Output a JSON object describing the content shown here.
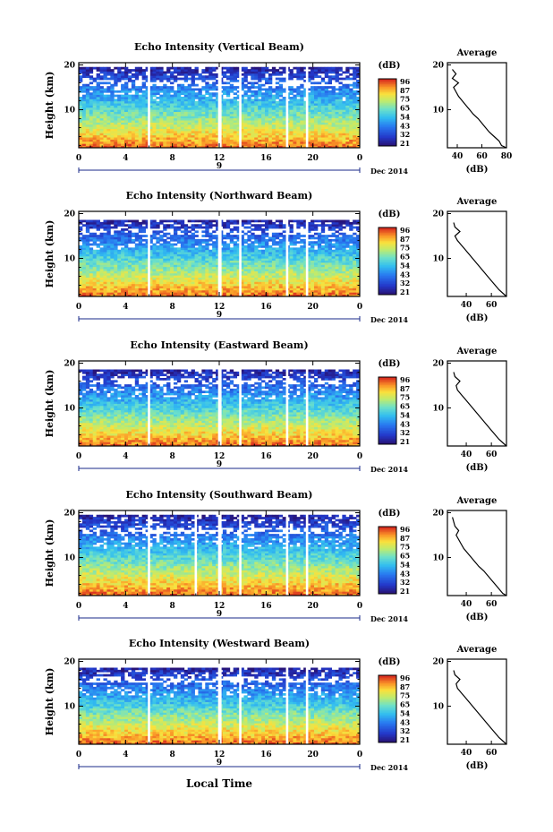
{
  "figure": {
    "xlabel": "Local Time",
    "date_label": "Dec 2014",
    "day_label": "9",
    "colorbar_unit": "(dB)",
    "colorbar_ticks": [
      "96",
      "87",
      "75",
      "65",
      "54",
      "43",
      "32",
      "21"
    ],
    "avg_title": "Average",
    "avg_xlabel": "(dB)"
  },
  "chart_data": [
    {
      "type": "heatmap",
      "title": "Echo Intensity (Vertical Beam)",
      "ylabel": "Height (km)",
      "x_ticks": [
        "0",
        "4",
        "8",
        "12",
        "16",
        "20",
        "0"
      ],
      "y_ticks": [
        "20",
        "10"
      ],
      "xlim": [
        0,
        24
      ],
      "ylim": [
        1.5,
        20.5
      ],
      "zlim": [
        21,
        96
      ],
      "data_gaps_hours": [
        [
          5.9,
          6.1
        ],
        [
          11.9,
          12.2
        ],
        [
          13.7,
          13.9
        ],
        [
          17.7,
          17.9
        ],
        [
          19.4,
          19.6
        ]
      ],
      "cloud_top_km": 19,
      "grid": false,
      "average_profile": {
        "x_ticks": [
          "40",
          "60",
          "80"
        ],
        "y_ticks": [
          "20",
          "10"
        ],
        "xlim": [
          32,
          80
        ],
        "height_km": [
          1.5,
          2,
          3,
          4,
          5,
          6,
          7,
          8,
          9,
          10,
          11,
          12,
          13,
          14,
          15,
          16,
          17,
          18,
          19
        ],
        "db": [
          80,
          76,
          74,
          70,
          66,
          63,
          60,
          57,
          53,
          50,
          47,
          44,
          41,
          39,
          37,
          41,
          36,
          39,
          36
        ]
      }
    },
    {
      "type": "heatmap",
      "title": "Echo Intensity (Northward Beam)",
      "ylabel": "Height (km)",
      "x_ticks": [
        "0",
        "4",
        "8",
        "12",
        "16",
        "20",
        "0"
      ],
      "y_ticks": [
        "20",
        "10"
      ],
      "xlim": [
        0,
        24
      ],
      "ylim": [
        1.5,
        20.5
      ],
      "zlim": [
        21,
        96
      ],
      "data_gaps_hours": [
        [
          5.9,
          6.1
        ],
        [
          11.9,
          12.2
        ],
        [
          13.7,
          13.9
        ],
        [
          17.7,
          17.9
        ],
        [
          19.4,
          19.6
        ]
      ],
      "cloud_top_km": 18,
      "grid": false,
      "average_profile": {
        "x_ticks": [
          "40",
          "60"
        ],
        "y_ticks": [
          "20",
          "10"
        ],
        "xlim": [
          25,
          72
        ],
        "height_km": [
          1.5,
          2,
          3,
          4,
          5,
          6,
          7,
          8,
          9,
          10,
          11,
          12,
          13,
          14,
          15,
          16,
          17,
          18
        ],
        "db": [
          72,
          70,
          66,
          63,
          60,
          57,
          54,
          51,
          48,
          45,
          42,
          39,
          36,
          33,
          31,
          35,
          31,
          30
        ]
      }
    },
    {
      "type": "heatmap",
      "title": "Echo Intensity (Eastward Beam)",
      "ylabel": "Height (km)",
      "x_ticks": [
        "0",
        "4",
        "8",
        "12",
        "16",
        "20",
        "0"
      ],
      "y_ticks": [
        "20",
        "10"
      ],
      "xlim": [
        0,
        24
      ],
      "ylim": [
        1.5,
        20.5
      ],
      "zlim": [
        21,
        96
      ],
      "data_gaps_hours": [
        [
          5.9,
          6.1
        ],
        [
          11.9,
          12.2
        ],
        [
          13.7,
          13.9
        ],
        [
          17.7,
          17.9
        ],
        [
          19.4,
          19.6
        ]
      ],
      "cloud_top_km": 18,
      "grid": false,
      "average_profile": {
        "x_ticks": [
          "40",
          "60"
        ],
        "y_ticks": [
          "20",
          "10"
        ],
        "xlim": [
          25,
          72
        ],
        "height_km": [
          1.5,
          2,
          3,
          4,
          5,
          6,
          7,
          8,
          9,
          10,
          11,
          12,
          13,
          14,
          15,
          16,
          17,
          18
        ],
        "db": [
          72,
          70,
          66,
          63,
          60,
          57,
          54,
          51,
          48,
          45,
          42,
          39,
          36,
          33,
          32,
          35,
          31,
          30
        ]
      }
    },
    {
      "type": "heatmap",
      "title": "Echo Intensity (Southward Beam)",
      "ylabel": "Height (km)",
      "x_ticks": [
        "0",
        "4",
        "8",
        "12",
        "16",
        "20",
        "0"
      ],
      "y_ticks": [
        "20",
        "10"
      ],
      "xlim": [
        0,
        24
      ],
      "ylim": [
        1.5,
        20.5
      ],
      "zlim": [
        21,
        96
      ],
      "data_gaps_hours": [
        [
          5.9,
          6.1
        ],
        [
          9.9,
          10.1
        ],
        [
          11.9,
          12.2
        ],
        [
          13.7,
          13.9
        ],
        [
          17.7,
          17.9
        ],
        [
          19.4,
          19.6
        ]
      ],
      "cloud_top_km": 19,
      "grid": false,
      "average_profile": {
        "x_ticks": [
          "40",
          "60"
        ],
        "y_ticks": [
          "20",
          "10"
        ],
        "xlim": [
          25,
          72
        ],
        "height_km": [
          1.5,
          2,
          3,
          4,
          5,
          6,
          7,
          8,
          9,
          10,
          11,
          12,
          13,
          14,
          15,
          16,
          17,
          18,
          19
        ],
        "db": [
          72,
          69,
          66,
          63,
          60,
          57,
          54,
          50,
          47,
          44,
          41,
          38,
          36,
          34,
          32,
          34,
          31,
          30,
          29
        ]
      }
    },
    {
      "type": "heatmap",
      "title": "Echo Intensity (Westward Beam)",
      "ylabel": "Height (km)",
      "x_ticks": [
        "0",
        "4",
        "8",
        "12",
        "16",
        "20",
        "0"
      ],
      "y_ticks": [
        "20",
        "10"
      ],
      "xlim": [
        0,
        24
      ],
      "ylim": [
        1.5,
        20.5
      ],
      "zlim": [
        21,
        96
      ],
      "data_gaps_hours": [
        [
          5.9,
          6.1
        ],
        [
          11.9,
          12.2
        ],
        [
          13.7,
          13.9
        ],
        [
          17.7,
          17.9
        ],
        [
          19.4,
          19.6
        ]
      ],
      "cloud_top_km": 18,
      "grid": false,
      "average_profile": {
        "x_ticks": [
          "40",
          "60"
        ],
        "y_ticks": [
          "20",
          "10"
        ],
        "xlim": [
          25,
          72
        ],
        "height_km": [
          1.5,
          2,
          3,
          4,
          5,
          6,
          7,
          8,
          9,
          10,
          11,
          12,
          13,
          14,
          15,
          16,
          17,
          18
        ],
        "db": [
          72,
          70,
          66,
          63,
          60,
          57,
          54,
          51,
          48,
          45,
          42,
          39,
          36,
          33,
          32,
          35,
          31,
          30
        ]
      }
    }
  ]
}
